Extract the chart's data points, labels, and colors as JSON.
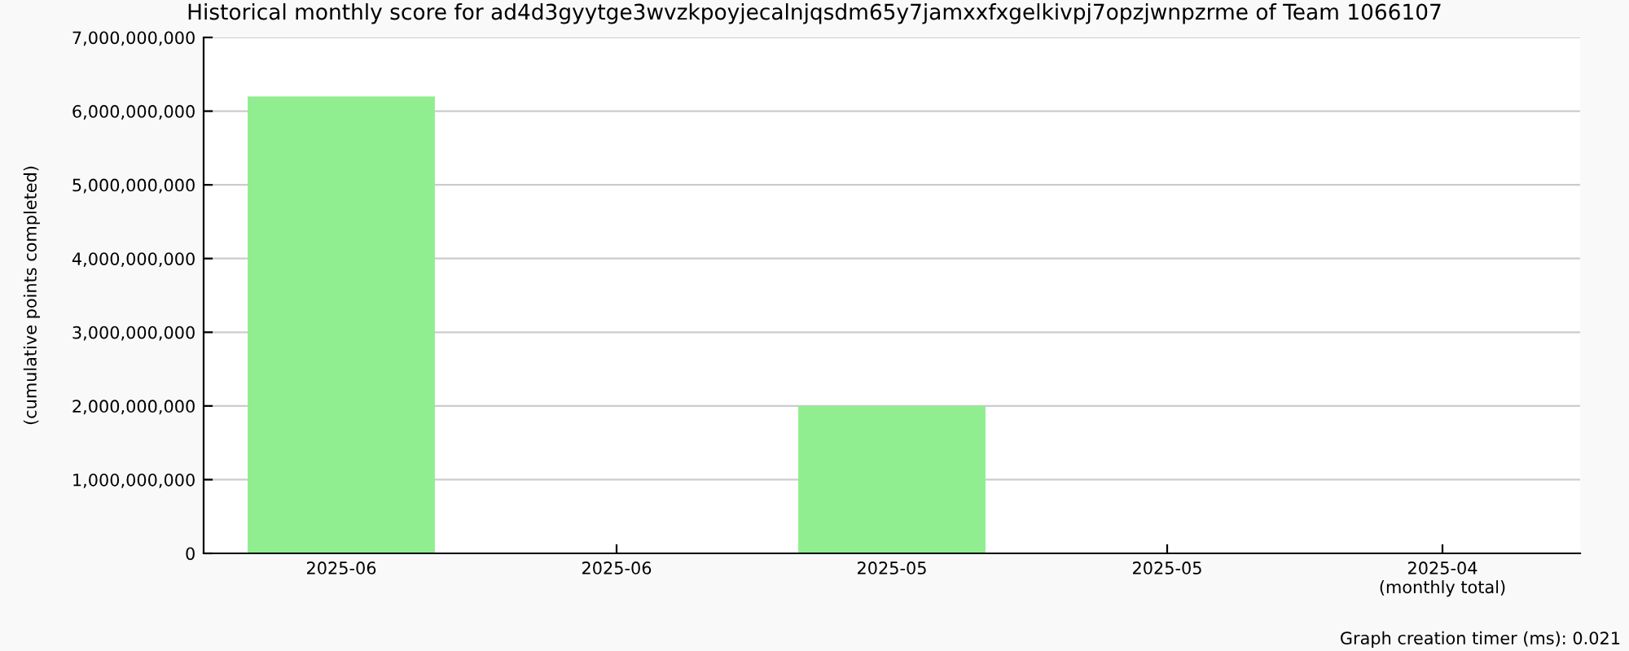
{
  "chart_data": {
    "type": "bar",
    "title": "Historical monthly score for ad4d3gyytge3wvzkpoyjecalnjqsdm65y7jamxxfxgelkivpj7opzjwnpzrme of Team 1066107",
    "ylabel": "(cumulative points completed)",
    "categories": [
      "2025-06",
      "2025-06",
      "2025-05",
      "2025-05",
      "2025-04\n(monthly total)"
    ],
    "values": [
      6200000000,
      0,
      2000000000,
      0,
      0
    ],
    "color": "#90ee90",
    "ylim": [
      0,
      7000000000
    ],
    "yticks": [
      {
        "value": 0,
        "label": "0"
      },
      {
        "value": 1000000000,
        "label": "1,000,000,000"
      },
      {
        "value": 2000000000,
        "label": "2,000,000,000"
      },
      {
        "value": 3000000000,
        "label": "3,000,000,000"
      },
      {
        "value": 4000000000,
        "label": "4,000,000,000"
      },
      {
        "value": 5000000000,
        "label": "5,000,000,000"
      },
      {
        "value": 6000000000,
        "label": "6,000,000,000"
      },
      {
        "value": 7000000000,
        "label": "7,000,000,000"
      }
    ],
    "grid": "y",
    "legend": false,
    "annotations": [
      "Graph creation timer (ms): 0.021"
    ]
  }
}
